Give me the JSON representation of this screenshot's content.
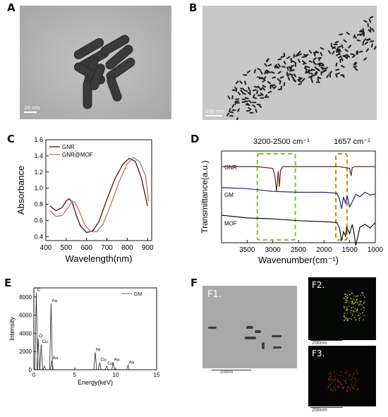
{
  "panels": {
    "A": {
      "label": "A",
      "scale": "20 nm"
    },
    "B": {
      "label": "B",
      "scale": "200 nm"
    },
    "C": {
      "label": "C"
    },
    "D": {
      "label": "D"
    },
    "E": {
      "label": "E"
    },
    "F": {
      "label": "F",
      "f1": "F1.",
      "f2": "F2.",
      "f3": "F3.",
      "scale_f1": "200nm",
      "scale_f2": "200nm",
      "scale_f3": "200nm"
    }
  },
  "chart_data": [
    {
      "id": "C",
      "type": "line",
      "xlabel": "Wavelength(nm)",
      "ylabel": "Absorbance",
      "xlim": [
        400,
        920
      ],
      "ylim": [
        0.35,
        1.6
      ],
      "xticks": [
        "400",
        "500",
        "600",
        "700",
        "800",
        "900"
      ],
      "yticks": [
        "0.4",
        "0.6",
        "0.8",
        "1.0",
        "1.2",
        "1.4",
        "1.6"
      ],
      "legend_position": "top-left",
      "series": [
        {
          "name": "GNR",
          "color": "#5a1e1e",
          "x": [
            420,
            450,
            480,
            500,
            515,
            530,
            550,
            570,
            600,
            630,
            660,
            700,
            740,
            780,
            810,
            840,
            870,
            900
          ],
          "y": [
            0.78,
            0.72,
            0.76,
            0.84,
            0.87,
            0.82,
            0.66,
            0.53,
            0.45,
            0.47,
            0.58,
            0.86,
            1.12,
            1.3,
            1.37,
            1.33,
            1.12,
            0.78
          ]
        },
        {
          "name": "GNR@MOF",
          "color": "#c9786a",
          "x": [
            420,
            450,
            480,
            510,
            530,
            545,
            570,
            590,
            620,
            650,
            680,
            720,
            760,
            800,
            830,
            860,
            890,
            905
          ],
          "y": [
            0.72,
            0.65,
            0.66,
            0.76,
            0.84,
            0.82,
            0.68,
            0.55,
            0.46,
            0.46,
            0.55,
            0.8,
            1.08,
            1.3,
            1.38,
            1.33,
            1.15,
            0.84
          ]
        }
      ]
    },
    {
      "id": "D",
      "type": "line",
      "xlabel": "Wavenumber(cm⁻¹)",
      "ylabel": "Transmittance(a.u.)",
      "xlim": [
        4000,
        1000
      ],
      "xticks": [
        "3500",
        "3000",
        "2500",
        "2000",
        "1500",
        "1000"
      ],
      "annotations": [
        "3200-2500 cm⁻¹",
        "1657 cm⁻¹"
      ],
      "series": [
        {
          "name": "GNR",
          "color": "#6b1f1f",
          "offset": 0.83,
          "x": [
            4000,
            3300,
            3000,
            2960,
            2925,
            2895,
            2870,
            2850,
            2800,
            2500,
            2000,
            1700,
            1500,
            1470,
            1450,
            1400,
            1000
          ],
          "y": [
            0,
            0,
            -0.02,
            -0.1,
            -0.27,
            -0.05,
            -0.22,
            -0.04,
            0,
            0,
            0,
            0,
            -0.02,
            -0.1,
            -0.01,
            0,
            0
          ]
        },
        {
          "name": "GM",
          "color": "#1f1f8a",
          "offset": 0.53,
          "x": [
            4000,
            3500,
            3000,
            2500,
            2000,
            1750,
            1700,
            1657,
            1620,
            1580,
            1550,
            1500,
            1420,
            1380,
            1300,
            1200,
            1100,
            1000
          ],
          "y": [
            0.07,
            0.06,
            0.03,
            0.02,
            0.02,
            0.01,
            -0.05,
            -0.16,
            -0.03,
            -0.1,
            -0.02,
            -0.14,
            -0.05,
            0.0,
            -0.03,
            0.02,
            -0.01,
            0
          ]
        },
        {
          "name": "MOF",
          "color": "#111111",
          "offset": 0.22,
          "x": [
            4000,
            3500,
            3000,
            2500,
            2000,
            1750,
            1700,
            1657,
            1620,
            1580,
            1560,
            1500,
            1450,
            1420,
            1380,
            1300,
            1200,
            1100,
            1000
          ],
          "y": [
            0.08,
            0.05,
            0.04,
            0.02,
            0.01,
            0.0,
            -0.06,
            -0.2,
            -0.1,
            -0.15,
            -0.05,
            -0.12,
            -0.02,
            -0.1,
            -0.25,
            -0.05,
            -0.02,
            -0.06,
            0.0
          ]
        }
      ]
    },
    {
      "id": "E",
      "type": "bar",
      "xlabel": "Energy(keV)",
      "ylabel": "Intensity",
      "xlim": [
        0,
        15
      ],
      "ylim": [
        0,
        9000
      ],
      "xticks": [
        "0",
        "5",
        "10",
        "15"
      ],
      "yticks": [
        "0",
        "2000",
        "4000",
        "6000",
        "8000"
      ],
      "legend": "GM",
      "peaks": [
        {
          "x": 0.3,
          "y": 8500,
          "label": "C"
        },
        {
          "x": 0.9,
          "y": 2800,
          "label": "Cu"
        },
        {
          "x": 0.53,
          "y": 3400,
          "label": "O"
        },
        {
          "x": 1.3,
          "y": 400,
          "label": ""
        },
        {
          "x": 2.1,
          "y": 7300,
          "label": "Au"
        },
        {
          "x": 2.2,
          "y": 1000,
          "label": "Au"
        },
        {
          "x": 7.5,
          "y": 1900,
          "label": "Ni"
        },
        {
          "x": 8.05,
          "y": 800,
          "label": "Cu"
        },
        {
          "x": 8.9,
          "y": 400,
          "label": "Cu"
        },
        {
          "x": 9.7,
          "y": 800,
          "label": "Au"
        },
        {
          "x": 11.5,
          "y": 500,
          "label": "Au"
        }
      ]
    }
  ]
}
